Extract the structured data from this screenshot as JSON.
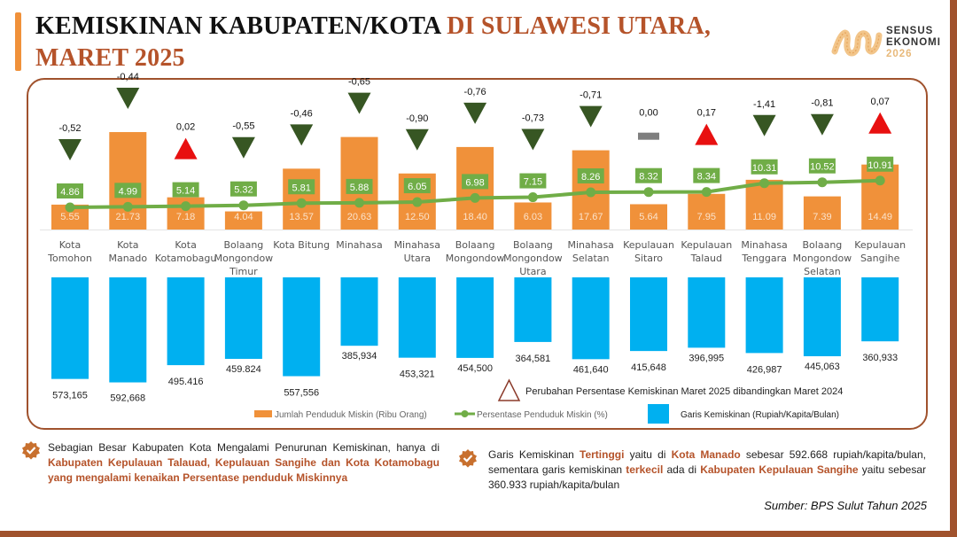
{
  "header": {
    "title_part1": "KEMISKINAN KABUPATEN/KOTA ",
    "title_part2": "DI SULAWESI UTARA,",
    "title_line2": "MARET 2025"
  },
  "logo": {
    "line1": "SENSUS",
    "line2": "EKONOMI",
    "line3": "2026"
  },
  "colors": {
    "orange": "#F0913A",
    "green": "#70AD47",
    "blue": "#00B0F0",
    "down": "#375623",
    "up": "#E81010",
    "zero": "#7F7F7F",
    "brown": "#A0522D"
  },
  "chart_data": {
    "type": "bar",
    "categories": [
      [
        "Kota",
        "Tomohon"
      ],
      [
        "Kota",
        "Manado"
      ],
      [
        "Kota",
        "Kotamobagu"
      ],
      [
        "Bolaang",
        "Mongondow",
        "Timur"
      ],
      [
        "Kota Bitung"
      ],
      [
        "Minahasa"
      ],
      [
        "Minahasa",
        "Utara"
      ],
      [
        "Bolaang",
        "Mongondow"
      ],
      [
        "Bolaang",
        "Mongondow",
        "Utara"
      ],
      [
        "Minahasa",
        "Selatan"
      ],
      [
        "Kepulauan",
        "Sitaro"
      ],
      [
        "Kepulauan",
        "Talaud"
      ],
      [
        "Minahasa",
        "Tenggara"
      ],
      [
        "Bolaang",
        "Mongondow",
        "Selatan"
      ],
      [
        "Kepulauan",
        "Sangihe"
      ]
    ],
    "series": [
      {
        "name": "Jumlah Penduduk Miskin (Ribu Orang)",
        "type": "bar",
        "values": [
          5.55,
          21.73,
          7.18,
          4.04,
          13.57,
          20.63,
          12.5,
          18.4,
          6.03,
          17.67,
          5.64,
          7.95,
          11.09,
          7.39,
          14.49
        ],
        "labels": [
          "5.55",
          "21.73",
          "7.18",
          "4.04",
          "13.57",
          "20.63",
          "12.50",
          "18.40",
          "6.03",
          "17.67",
          "5.64",
          "7.95",
          "11.09",
          "7.39",
          "14.49"
        ]
      },
      {
        "name": "Persentase Penduduk Miskin (%)",
        "type": "line",
        "values": [
          4.86,
          4.99,
          5.14,
          5.32,
          5.81,
          5.88,
          6.05,
          6.98,
          7.15,
          8.26,
          8.32,
          8.34,
          10.31,
          10.52,
          10.91
        ],
        "labels": [
          "4.86",
          "4.99",
          "5.14",
          "5.32",
          "5.81",
          "5.88",
          "6.05",
          "6.98",
          "7.15",
          "8.26",
          "8.32",
          "8.34",
          "10.31",
          "10.52",
          "10.91"
        ]
      },
      {
        "name": "Perubahan Persentase Kemiskinan Maret 2025 dibandingkan Maret 2024",
        "type": "marker",
        "values": [
          -0.52,
          -0.44,
          0.02,
          -0.55,
          -0.46,
          -0.65,
          -0.9,
          -0.76,
          -0.73,
          -0.71,
          0.0,
          0.17,
          -1.41,
          -0.81,
          0.07
        ],
        "labels": [
          "-0,52",
          "-0,44",
          "0,02",
          "-0,55",
          "-0,46",
          "-0,65",
          "-0,90",
          "-0,76",
          "-0,73",
          "-0,71",
          "0,00",
          "0,17",
          "-1,41",
          "-0,81",
          "0,07"
        ]
      },
      {
        "name": "Garis Kemiskinan (Rupiah/Kapita/Bulan)",
        "type": "bar-inverted",
        "values": [
          573165,
          592668,
          495416,
          459824,
          557556,
          385934,
          453321,
          454500,
          364581,
          461640,
          415648,
          396995,
          426987,
          445063,
          360933
        ],
        "labels": [
          "573,165",
          "592,668",
          "495.416",
          "459.824",
          "557,556",
          "385,934",
          "453,321",
          "454,500",
          "364,581",
          "461,640",
          "415,648",
          "396,995",
          "426,987",
          "445,063",
          "360,933"
        ]
      }
    ],
    "legend": {
      "triangle": "Perubahan Persentase Kemiskinan Maret 2025 dibandingkan Maret 2024",
      "orange": "Jumlah Penduduk Miskin (Ribu Orang)",
      "green": "Persentase Penduduk Miskin (%)",
      "blue": "Garis Kemiskinan (Rupiah/Kapita/Bulan)"
    }
  },
  "notes": {
    "left_a": "Sebagian Besar Kabupaten Kota Mengalami Penurunan Kemiskinan, hanya di ",
    "left_b": "Kabupaten Kepulauan Talauad, Kepulauan Sangihe dan Kota Kotamobagu yang mengalami kenaikan Persentase penduduk Miskinnya",
    "right_a": "Garis Kemiskinan ",
    "right_b": "Tertinggi",
    "right_c": " yaitu di ",
    "right_d": "Kota Manado",
    "right_e": " sebesar 592.668 rupiah/kapita/bulan, sementara garis kemiskinan ",
    "right_f": "terkecil",
    "right_g": " ada di ",
    "right_h": "Kabupaten Kepulauan Sangihe",
    "right_i": " yaitu sebesar 360.933 rupiah/kapita/bulan",
    "source": "Sumber: BPS Sulut Tahun 2025"
  }
}
